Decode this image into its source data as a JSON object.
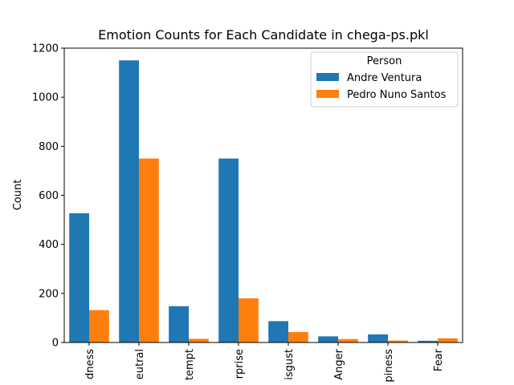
{
  "chart_data": {
    "type": "bar",
    "title": "Emotion Counts for Each Candidate in chega-ps.pkl",
    "xlabel": "",
    "ylabel": "Count",
    "categories": [
      "dness",
      "eutral",
      "tempt",
      "rprise",
      "isgust",
      "Anger",
      "piness",
      "Fear"
    ],
    "series": [
      {
        "name": "Andre Ventura",
        "color": "#1f77b4",
        "values": [
          527,
          1150,
          148,
          750,
          87,
          25,
          33,
          7
        ]
      },
      {
        "name": "Pedro Nuno Santos",
        "color": "#ff7f0e",
        "values": [
          132,
          750,
          15,
          180,
          43,
          14,
          8,
          17
        ]
      }
    ],
    "ylim": [
      0,
      1200
    ],
    "yticks": [
      0,
      200,
      400,
      600,
      800,
      1000,
      1200
    ],
    "grid": false,
    "legend": {
      "title": "Person",
      "position": "top-right"
    }
  }
}
